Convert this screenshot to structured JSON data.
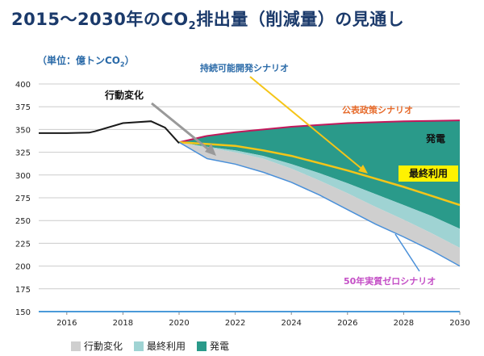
{
  "title": {
    "pre": "2015～2030年のCO",
    "sub": "2",
    "post": "排出量（削減量）の見通し"
  },
  "unit": {
    "pre": "（単位：億トンCO",
    "sub": "2",
    "post": "）"
  },
  "colors": {
    "historical": "#1a1a1a",
    "policy": "#c2185b",
    "sustainable": "#f5c518",
    "zero": "#4a90d9",
    "behavior_fill": "#cfcfcf",
    "end_use_fill": "#9fd3d3",
    "power_fill": "#2a9a8a",
    "grid": "#cccccc",
    "axis_blue": "#4a9ad9"
  },
  "chart_data": {
    "type": "area",
    "xlim": [
      2015,
      2030
    ],
    "ylim": [
      150,
      400
    ],
    "x_ticks": [
      2016,
      2018,
      2020,
      2022,
      2024,
      2026,
      2028,
      2030
    ],
    "y_ticks": [
      150,
      175,
      200,
      225,
      250,
      275,
      300,
      325,
      350,
      375,
      400
    ],
    "grid": true,
    "legend_position": "bottom",
    "historical": {
      "x": [
        2015,
        2016,
        2016.8,
        2017,
        2018,
        2019,
        2019.5,
        2020
      ],
      "y": [
        346,
        346,
        346.5,
        348,
        357,
        359,
        352,
        335
      ]
    },
    "projection_x": [
      2020,
      2021,
      2022,
      2023,
      2024,
      2025,
      2026,
      2027,
      2028,
      2029,
      2030
    ],
    "series": [
      {
        "name": "公表政策シナリオ",
        "values": [
          336,
          343,
          347,
          350,
          353,
          355,
          357,
          358,
          359,
          359.5,
          360
        ]
      },
      {
        "name": "持続可能開発シナリオ",
        "values": [
          336,
          334,
          332,
          327,
          321,
          313,
          305,
          296,
          287,
          277,
          267
        ]
      },
      {
        "name": "50年実質ゼロシナリオ",
        "values": [
          336,
          318,
          312,
          303,
          292,
          278,
          262,
          246,
          232,
          217,
          200
        ]
      }
    ],
    "stacks": {
      "behavior_top": [
        336,
        330,
        325,
        318,
        307,
        294,
        280,
        265,
        251,
        236,
        220
      ],
      "end_use_top": [
        336,
        331,
        327,
        321,
        312,
        302,
        291,
        279,
        267,
        255,
        241
      ]
    },
    "legend": [
      "行動変化",
      "最終利用",
      "発電"
    ],
    "annotations": {
      "behavior": "行動変化",
      "sustainable": "持続可能開発シナリオ",
      "policy": "公表政策シナリオ",
      "power": "発電",
      "end_use": "最終利用",
      "zero": "50年実質ゼロシナリオ"
    }
  }
}
